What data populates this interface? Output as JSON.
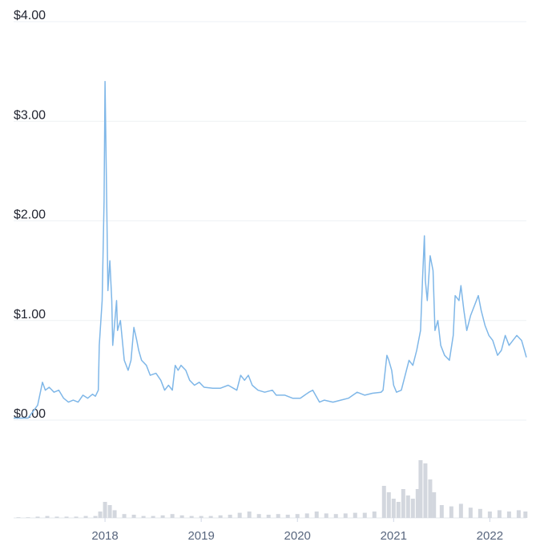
{
  "chart_data": {
    "type": "line",
    "xlim": [
      2017.05,
      2022.38
    ],
    "xticks": [
      2018,
      2019,
      2020,
      2021,
      2022
    ],
    "ylim": [
      0,
      4
    ],
    "yticks": [
      {
        "value": 0,
        "label": "$0.00"
      },
      {
        "value": 1,
        "label": "$1.00"
      },
      {
        "value": 2,
        "label": "$2.00"
      },
      {
        "value": 3,
        "label": "$3.00"
      },
      {
        "value": 4,
        "label": "$4.00"
      }
    ],
    "y2lim": [
      0,
      100
    ],
    "grid": true,
    "series": [
      {
        "type": "line",
        "color": "#7fb7e8",
        "x": [
          2017.05,
          2017.2,
          2017.3,
          2017.35,
          2017.38,
          2017.42,
          2017.47,
          2017.52,
          2017.57,
          2017.62,
          2017.67,
          2017.72,
          2017.77,
          2017.82,
          2017.87,
          2017.9,
          2017.93,
          2017.94,
          2017.97,
          2017.99,
          2018.0,
          2018.02,
          2018.03,
          2018.05,
          2018.07,
          2018.08,
          2018.12,
          2018.13,
          2018.16,
          2018.18,
          2018.2,
          2018.24,
          2018.27,
          2018.3,
          2018.33,
          2018.35,
          2018.38,
          2018.43,
          2018.47,
          2018.53,
          2018.58,
          2018.62,
          2018.66,
          2018.7,
          2018.73,
          2018.76,
          2018.79,
          2018.84,
          2018.88,
          2018.93,
          2018.98,
          2019.03,
          2019.12,
          2019.2,
          2019.28,
          2019.37,
          2019.41,
          2019.45,
          2019.49,
          2019.53,
          2019.59,
          2019.66,
          2019.74,
          2019.78,
          2019.87,
          2019.95,
          2020.03,
          2020.12,
          2020.16,
          2020.23,
          2020.28,
          2020.37,
          2020.45,
          2020.53,
          2020.62,
          2020.7,
          2020.78,
          2020.87,
          2020.89,
          2020.93,
          2020.95,
          2020.98,
          2021.0,
          2021.03,
          2021.08,
          2021.12,
          2021.16,
          2021.2,
          2021.24,
          2021.28,
          2021.3,
          2021.32,
          2021.33,
          2021.35,
          2021.38,
          2021.41,
          2021.43,
          2021.46,
          2021.49,
          2021.53,
          2021.58,
          2021.62,
          2021.64,
          2021.68,
          2021.7,
          2021.73,
          2021.76,
          2021.8,
          2021.84,
          2021.88,
          2021.91,
          2021.95,
          2021.99,
          2022.03,
          2022.08,
          2022.12,
          2022.16,
          2022.2,
          2022.24,
          2022.28,
          2022.33,
          2022.36,
          2022.38
        ],
        "values": [
          0.02,
          0.02,
          0.15,
          0.38,
          0.3,
          0.33,
          0.28,
          0.3,
          0.22,
          0.18,
          0.2,
          0.18,
          0.25,
          0.22,
          0.26,
          0.24,
          0.3,
          0.75,
          1.2,
          2.2,
          3.4,
          2.0,
          1.3,
          1.6,
          1.2,
          0.75,
          1.2,
          0.9,
          1.0,
          0.8,
          0.6,
          0.5,
          0.6,
          0.93,
          0.8,
          0.7,
          0.6,
          0.55,
          0.45,
          0.47,
          0.4,
          0.3,
          0.35,
          0.3,
          0.55,
          0.5,
          0.55,
          0.5,
          0.4,
          0.35,
          0.38,
          0.33,
          0.32,
          0.32,
          0.35,
          0.3,
          0.45,
          0.4,
          0.45,
          0.35,
          0.3,
          0.28,
          0.3,
          0.25,
          0.25,
          0.22,
          0.22,
          0.28,
          0.3,
          0.18,
          0.2,
          0.18,
          0.2,
          0.22,
          0.28,
          0.25,
          0.27,
          0.28,
          0.3,
          0.65,
          0.6,
          0.5,
          0.35,
          0.28,
          0.3,
          0.45,
          0.6,
          0.55,
          0.7,
          0.9,
          1.4,
          1.85,
          1.4,
          1.2,
          1.65,
          1.5,
          0.9,
          1.0,
          0.75,
          0.65,
          0.6,
          0.85,
          1.25,
          1.2,
          1.35,
          1.1,
          0.9,
          1.05,
          1.15,
          1.25,
          1.1,
          0.95,
          0.85,
          0.8,
          0.65,
          0.7,
          0.85,
          0.75,
          0.8,
          0.85,
          0.8,
          0.7,
          0.63
        ]
      },
      {
        "type": "bar",
        "axis": "y2",
        "color": "#d3d7de",
        "x": [
          2017.1,
          2017.2,
          2017.3,
          2017.4,
          2017.5,
          2017.6,
          2017.7,
          2017.8,
          2017.9,
          2017.95,
          2018.0,
          2018.05,
          2018.1,
          2018.2,
          2018.3,
          2018.4,
          2018.5,
          2018.6,
          2018.7,
          2018.8,
          2018.9,
          2019.0,
          2019.1,
          2019.2,
          2019.3,
          2019.4,
          2019.5,
          2019.6,
          2019.7,
          2019.8,
          2019.9,
          2020.0,
          2020.1,
          2020.2,
          2020.3,
          2020.4,
          2020.5,
          2020.6,
          2020.7,
          2020.8,
          2020.9,
          2020.95,
          2021.0,
          2021.05,
          2021.1,
          2021.15,
          2021.2,
          2021.25,
          2021.28,
          2021.33,
          2021.38,
          2021.42,
          2021.5,
          2021.6,
          2021.7,
          2021.8,
          2021.9,
          2022.0,
          2022.1,
          2022.2,
          2022.3,
          2022.37
        ],
        "values": [
          1,
          1,
          2,
          3,
          2,
          2,
          2,
          3,
          3,
          10,
          25,
          20,
          12,
          6,
          5,
          3,
          3,
          4,
          6,
          4,
          3,
          3,
          3,
          4,
          5,
          8,
          10,
          6,
          5,
          6,
          5,
          6,
          7,
          10,
          7,
          6,
          7,
          8,
          8,
          10,
          50,
          40,
          30,
          25,
          45,
          35,
          30,
          45,
          90,
          85,
          60,
          40,
          20,
          18,
          22,
          16,
          14,
          10,
          12,
          10,
          12,
          10
        ]
      }
    ]
  }
}
